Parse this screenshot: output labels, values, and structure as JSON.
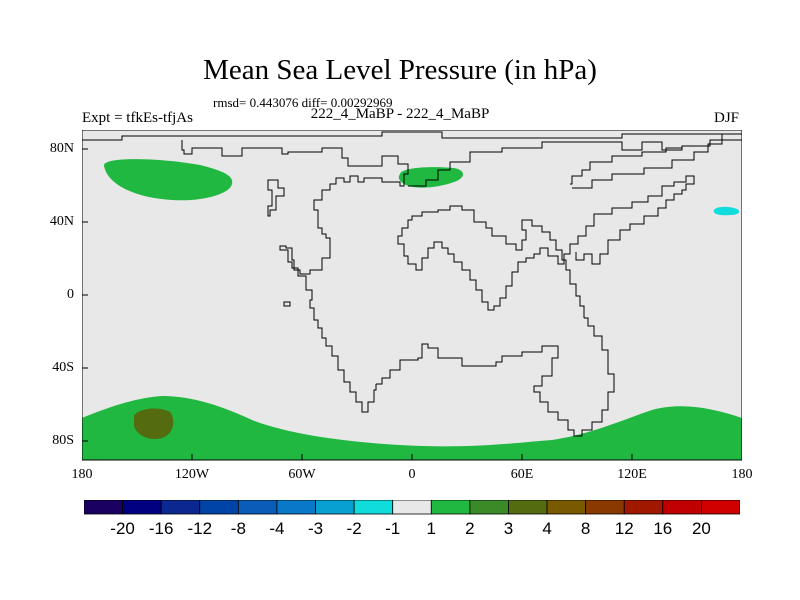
{
  "title": "Mean Sea Level Pressure (in hPa)",
  "stats": "rmsd= 0.443076 diff= 0.00292969",
  "expt": "Expt = tfkEs-tfjAs",
  "center_label": "222_4_MaBP - 222_4_MaBP",
  "season": "DJF",
  "lat_labels": [
    "80N",
    "40N",
    "0",
    "40S",
    "80S"
  ],
  "lon_labels": [
    "180",
    "120W",
    "60W",
    "0",
    "60E",
    "120E",
    "180"
  ],
  "colorbar": {
    "labels": [
      "-20",
      "-16",
      "-12",
      "-8",
      "-4",
      "-3",
      "-2",
      "-1",
      "1",
      "2",
      "3",
      "4",
      "8",
      "12",
      "16",
      "20"
    ],
    "colors": [
      "#1a0060",
      "#000080",
      "#0a2890",
      "#0044a8",
      "#0a5cb8",
      "#0a78c8",
      "#08a0d0",
      "#10dcdc",
      "#e8e8e8",
      "#20b840",
      "#3a8a28",
      "#556b10",
      "#7a5a00",
      "#8a3a00",
      "#a01800",
      "#c00000",
      "#d00000"
    ]
  },
  "map": {
    "background_color": "#e8e8e8",
    "fields": [
      {
        "name": "arctic-pacific-positive",
        "category": "1 to 2",
        "color": "#20b840"
      },
      {
        "name": "arctic-atlantic-positive",
        "category": "1 to 2",
        "color": "#20b840"
      },
      {
        "name": "north-pacific-negative",
        "category": "-2 to -1",
        "color": "#10dcdc"
      },
      {
        "name": "antarctic-positive",
        "category": "1 to 2",
        "color": "#20b840"
      },
      {
        "name": "antarctic-core",
        "category": "3 to 4",
        "color": "#556b10"
      }
    ]
  }
}
